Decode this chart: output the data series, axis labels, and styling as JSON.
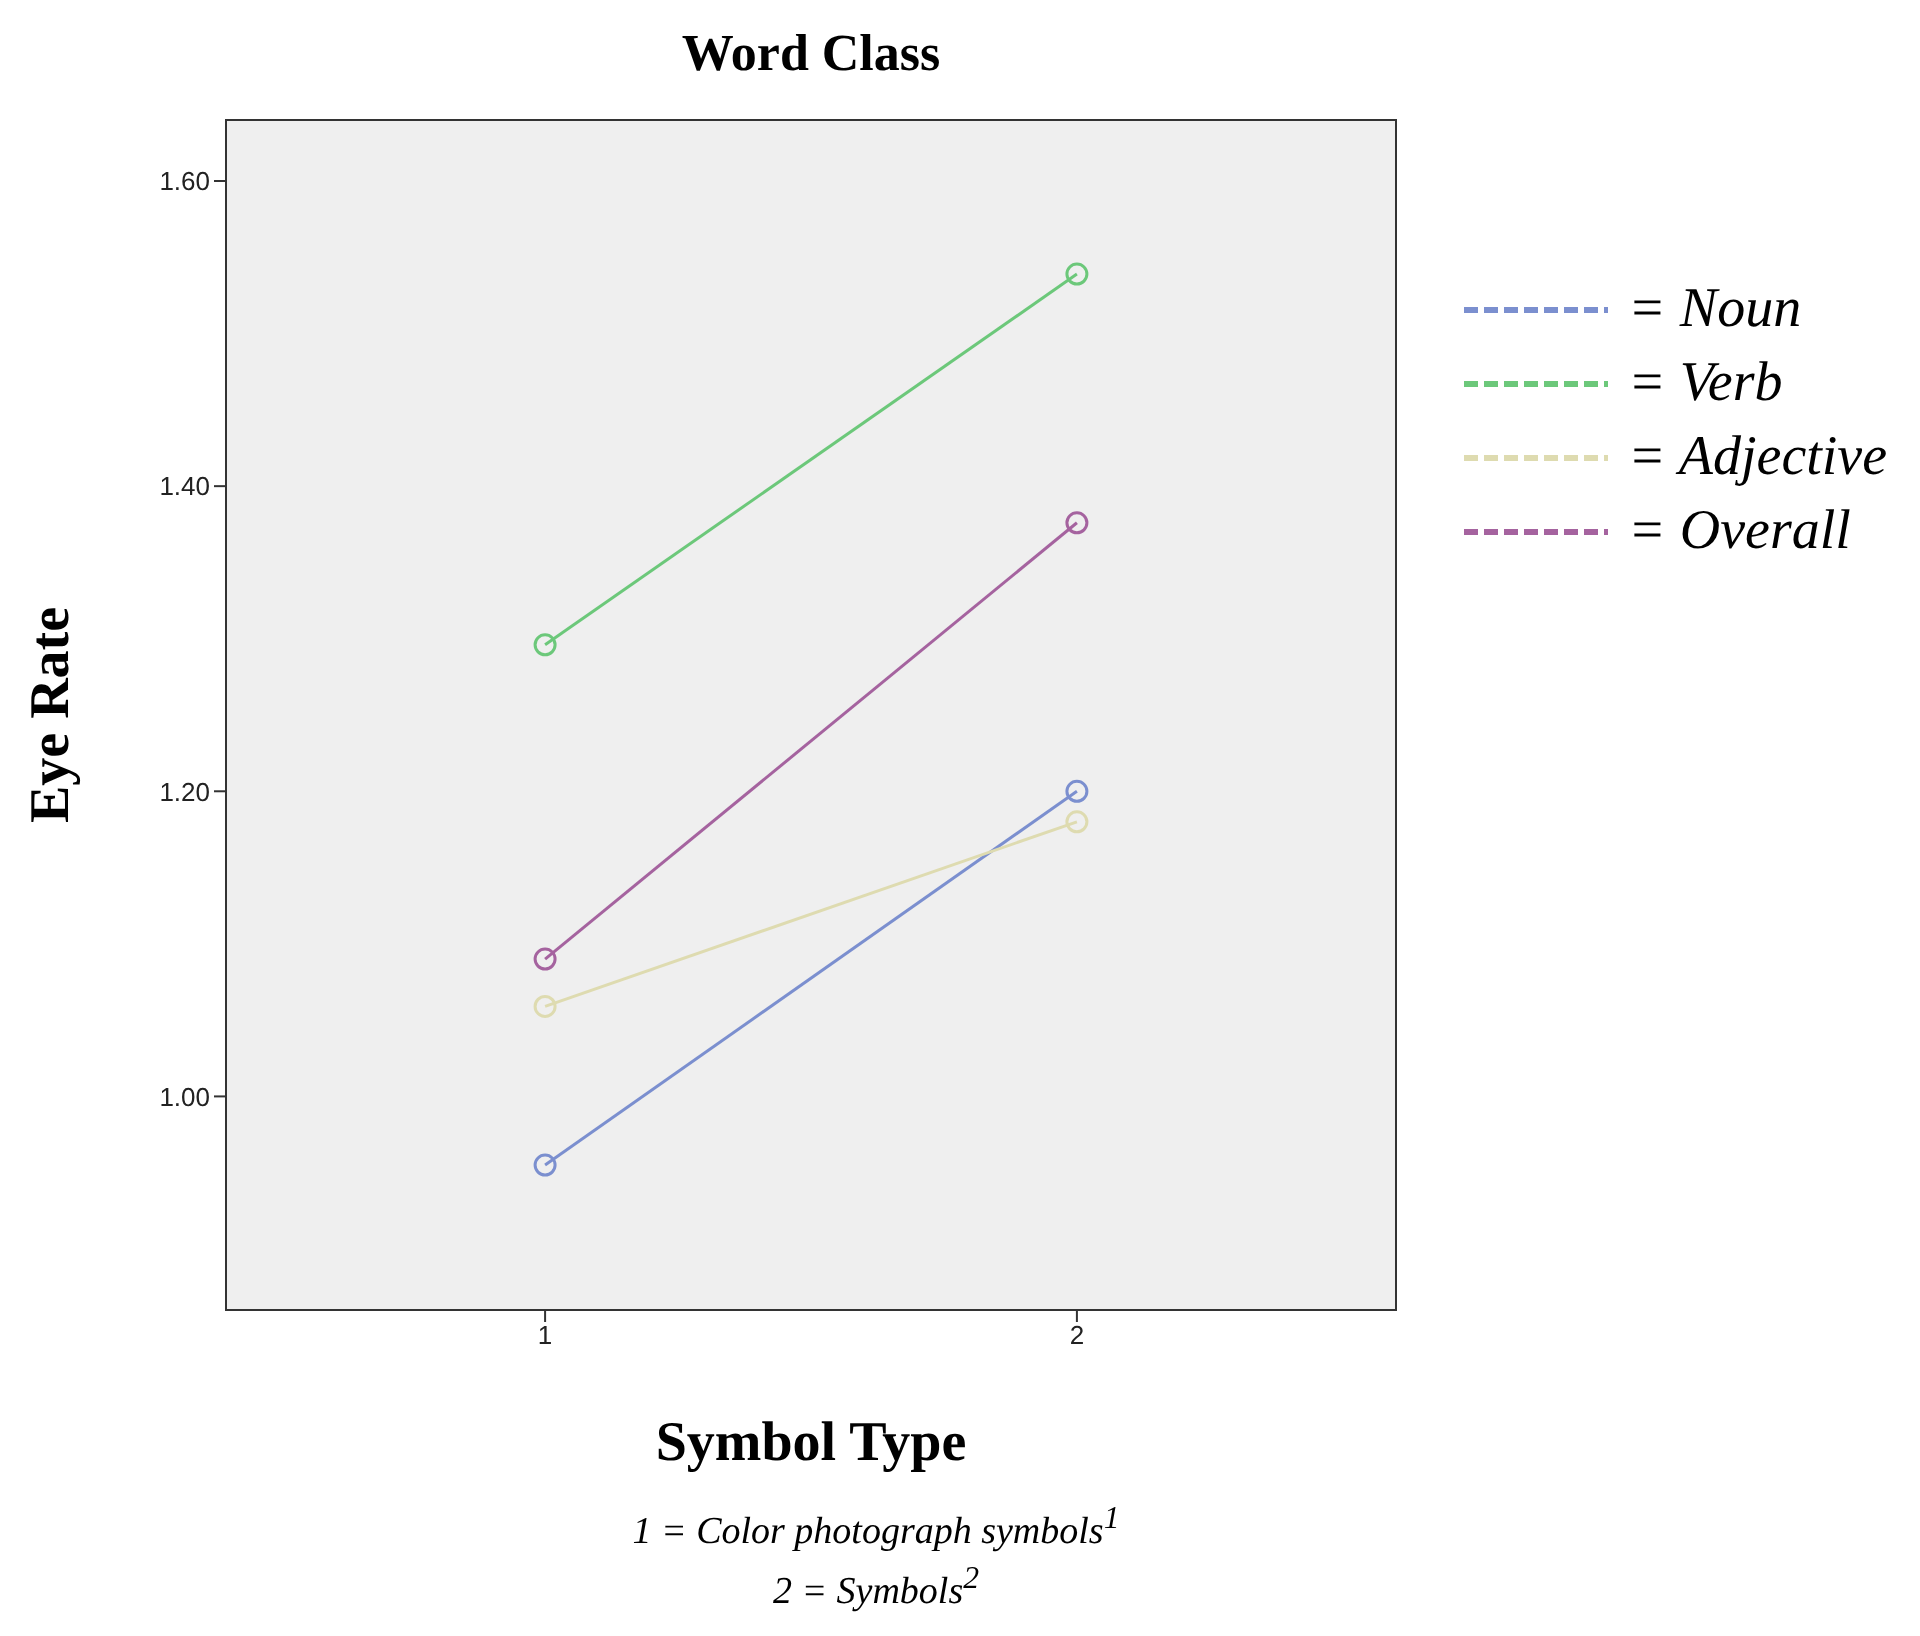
{
  "chart_data": {
    "type": "line",
    "title": "Word Class",
    "xlabel": "Symbol Type",
    "ylabel": "Eye Rate",
    "x": [
      1,
      2
    ],
    "xlim": [
      0.4,
      2.6
    ],
    "xticks": [
      1,
      2
    ],
    "ylim": [
      0.86,
      1.64
    ],
    "yticks": [
      {
        "value": 1.0,
        "label": "1.00"
      },
      {
        "value": 1.2,
        "label": "1.20"
      },
      {
        "value": 1.4,
        "label": "1.40"
      },
      {
        "value": 1.6,
        "label": "1.60"
      }
    ],
    "marker": "circle",
    "line_style": "solid",
    "legend": "right",
    "series": [
      {
        "name": "= Noun",
        "color": "#7b8fcf",
        "values": [
          0.955,
          1.2
        ]
      },
      {
        "name": "= Verb",
        "color": "#6cc87a",
        "values": [
          1.296,
          1.539
        ]
      },
      {
        "name": "= Adjective",
        "color": "#dedbb0",
        "values": [
          1.059,
          1.18
        ]
      },
      {
        "name": "= Overall",
        "color": "#a5639f",
        "values": [
          1.09,
          1.376
        ]
      }
    ],
    "annotations": [
      "1 = Color photograph symbols$^{1}$",
      "2 = Symbols$^{2}$"
    ]
  }
}
